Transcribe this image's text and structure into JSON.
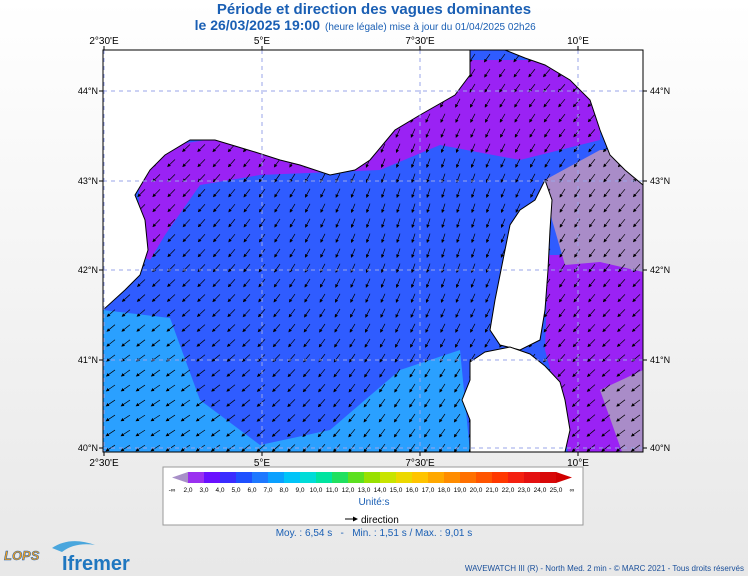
{
  "header": {
    "title": "Période et direction des vagues dominantes",
    "date": "le 26/03/2025 19:00",
    "update": "(heure légale) mise à jour du 01/04/2025 02h26"
  },
  "map": {
    "lon_labels": [
      "2°30'E",
      "5°E",
      "7°30'E",
      "10°E"
    ],
    "lat_labels": [
      "44°N",
      "43°N",
      "42°N",
      "41°N",
      "40°N"
    ]
  },
  "legend": {
    "labels": [
      "-∞",
      "2,0",
      "3,0",
      "4,0",
      "5,0",
      "6,0",
      "7,0",
      "8,0",
      "9,0",
      "10,0",
      "11,0",
      "12,0",
      "13,0",
      "14,0",
      "15,0",
      "16,0",
      "17,0",
      "18,0",
      "19,0",
      "20,0",
      "21,0",
      "22,0",
      "23,0",
      "24,0",
      "25,0",
      "∞"
    ],
    "colors": [
      "#a890c8",
      "#9a30f0",
      "#6a10ff",
      "#3a2cff",
      "#1e50ff",
      "#1e78ff",
      "#0aa0ff",
      "#00c4f8",
      "#00dcd8",
      "#00e4a0",
      "#20e060",
      "#5ce020",
      "#98e000",
      "#c8e400",
      "#ecd800",
      "#ffc400",
      "#ffa800",
      "#ff8c00",
      "#ff7000",
      "#ff5400",
      "#ff3800",
      "#f42010",
      "#e41010",
      "#d80808",
      "#d00000"
    ],
    "unit": "Unité:s",
    "direction": "direction"
  },
  "stats": "Moy. : 6,54 s   -   Min. : 1,51 s / Max. : 9,01 s",
  "footer": {
    "credit": "WAVEWATCH III (R) - North Med. 2 min - © MARC 2021 - Tous droits réservés",
    "logo_left": "LOPS",
    "logo_right": "Ifremer"
  }
}
